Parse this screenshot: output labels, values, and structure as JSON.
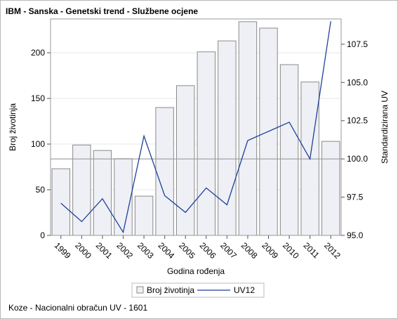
{
  "title": "IBM - Sanska - Genetski trend - Službene ocjene",
  "footnote": "Koze - Nacionalni obračun UV - 1601",
  "colors": {
    "bar_fill": "#eef0f5",
    "bar_stroke": "#8a8a8a",
    "line": "#1f3f9a",
    "grid": "#e8e8e8",
    "axis": "#9a9a9a",
    "refline": "#9a9a9a"
  },
  "chart_data": {
    "type": "bar",
    "categories": [
      "1999",
      "2000",
      "2001",
      "2002",
      "2003",
      "2004",
      "2005",
      "2006",
      "2007",
      "2008",
      "2009",
      "2010",
      "2011",
      "2012"
    ],
    "series": [
      {
        "name": "Broj životinja",
        "type": "bar",
        "axis": "left",
        "values": [
          73,
          99,
          93,
          84,
          43,
          140,
          164,
          201,
          213,
          234,
          227,
          187,
          168,
          103
        ]
      },
      {
        "name": "UV12",
        "type": "line",
        "axis": "right",
        "values": [
          97.1,
          95.9,
          97.4,
          95.2,
          101.5,
          97.6,
          96.5,
          98.1,
          97.0,
          101.2,
          101.8,
          102.4,
          100.0,
          109.0
        ]
      }
    ],
    "xlabel": "Godina rođenja",
    "ylabel": "Broj životinja",
    "y2label": "Standardizirana UV",
    "ylim": [
      0,
      237
    ],
    "yticks": [
      "0",
      "50",
      "100",
      "150",
      "200"
    ],
    "y2lim": [
      95.0,
      109.15
    ],
    "y2ticks": [
      "95.0",
      "97.5",
      "100.0",
      "102.5",
      "105.0",
      "107.5"
    ],
    "reference_line_y2": 100.0,
    "grid": true,
    "legend_position": "bottom"
  }
}
